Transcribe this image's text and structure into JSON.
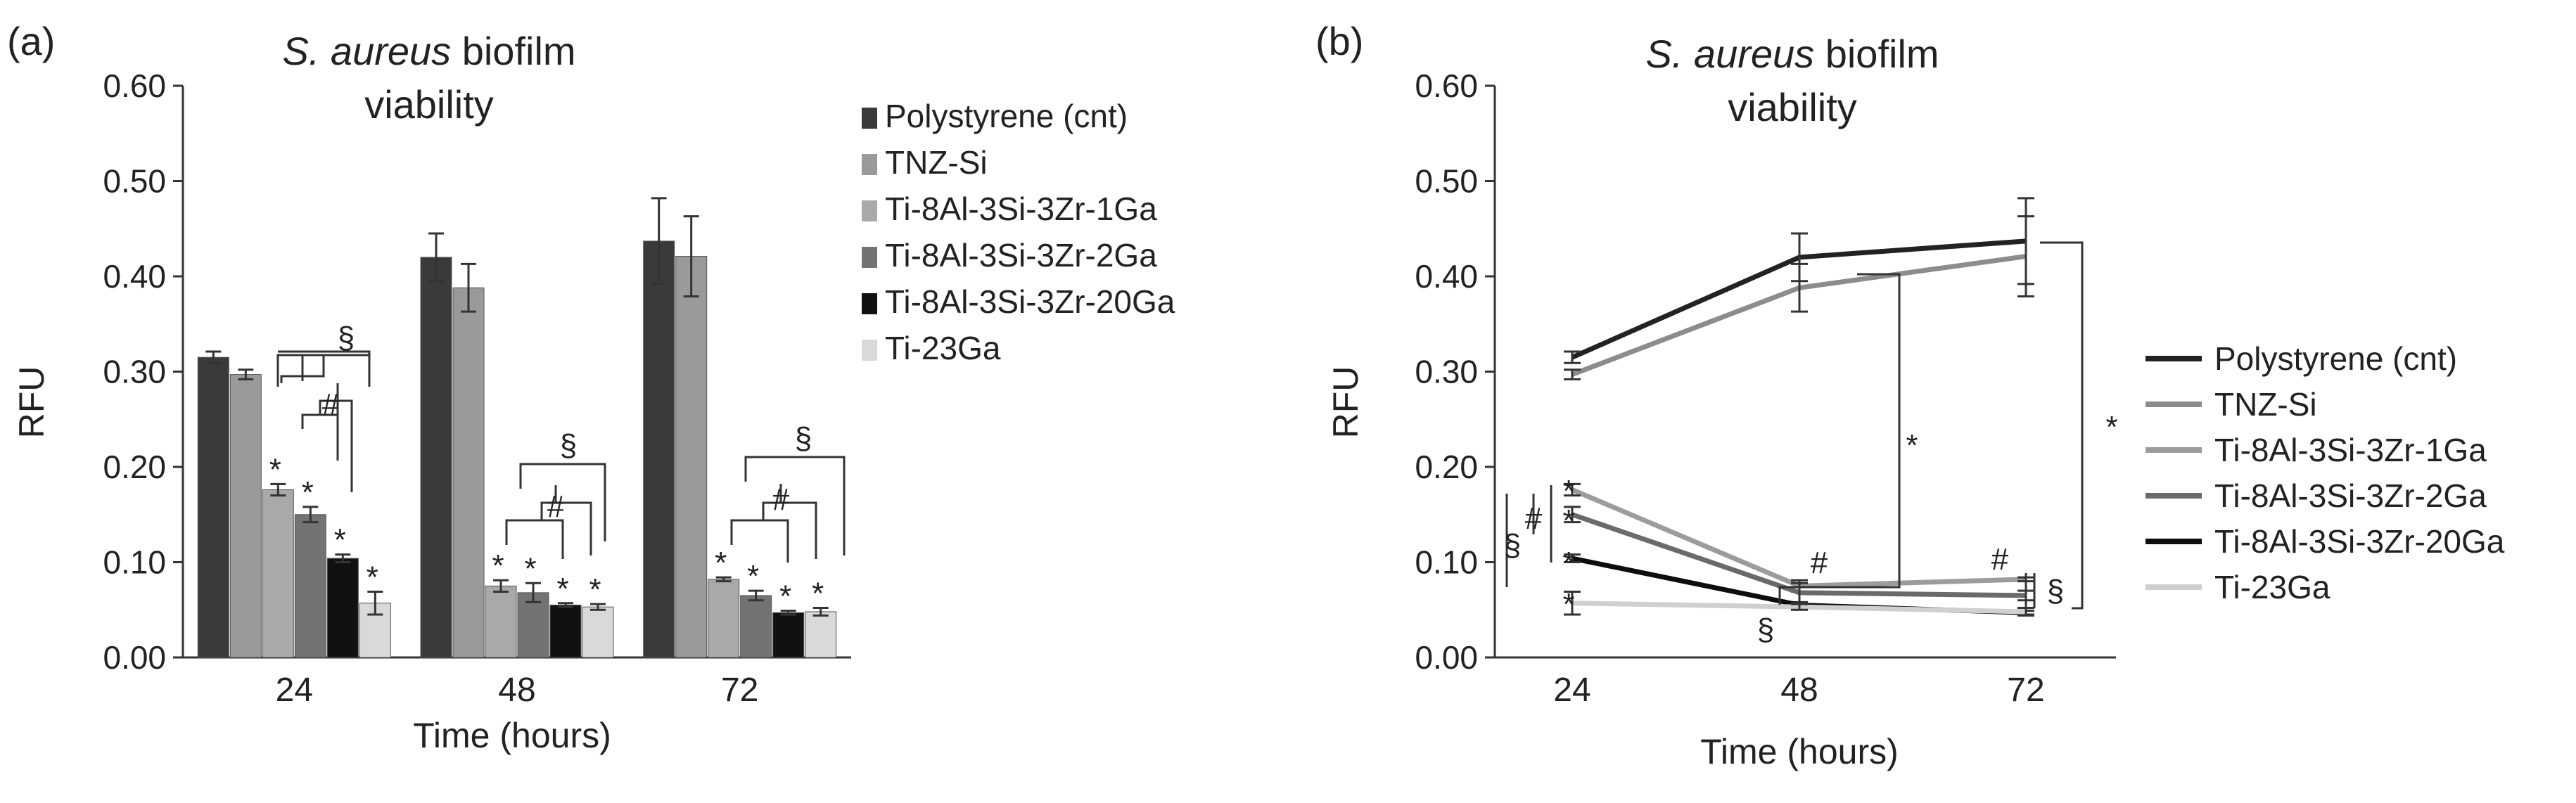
{
  "chart_data": [
    {
      "panel": "(a)",
      "type": "bar",
      "title_italic": "S. aureus",
      "title_rest": " biofilm",
      "title_line2": "viability",
      "xlabel": "Time (hours)",
      "ylabel": "RFU",
      "ylim": [
        0,
        0.6
      ],
      "yticks": [
        "0.00",
        "0.10",
        "0.20",
        "0.30",
        "0.40",
        "0.50",
        "0.60"
      ],
      "categories": [
        "24",
        "48",
        "72"
      ],
      "legend_position": "right",
      "series": [
        {
          "name": "Polystyrene (cnt)",
          "color": "#3a3a3a",
          "values": [
            0.315,
            0.42,
            0.437
          ],
          "errors": [
            0.006,
            0.025,
            0.045
          ],
          "sig": [
            "",
            "",
            ""
          ]
        },
        {
          "name": "TNZ-Si",
          "color": "#9a9a9a",
          "values": [
            0.297,
            0.388,
            0.421
          ],
          "errors": [
            0.005,
            0.025,
            0.042
          ],
          "sig": [
            "",
            "",
            ""
          ]
        },
        {
          "name": "Ti-8Al-3Si-3Zr-1Ga",
          "color": "#a9a9a9",
          "values": [
            0.176,
            0.075,
            0.082
          ],
          "errors": [
            0.006,
            0.006,
            0.002
          ],
          "sig": [
            "*",
            "*",
            "*"
          ]
        },
        {
          "name": "Ti-8Al-3Si-3Zr-2Ga",
          "color": "#737373",
          "values": [
            0.15,
            0.068,
            0.065
          ],
          "errors": [
            0.008,
            0.01,
            0.005
          ],
          "sig": [
            "*",
            "*",
            "*"
          ]
        },
        {
          "name": "Ti-8Al-3Si-3Zr-20Ga",
          "color": "#111111",
          "values": [
            0.104,
            0.055,
            0.047
          ],
          "errors": [
            0.004,
            0.002,
            0.002
          ],
          "sig": [
            "*",
            "*",
            "*"
          ]
        },
        {
          "name": "Ti-23Ga",
          "color": "#d9d9d9",
          "values": [
            0.057,
            0.053,
            0.048
          ],
          "errors": [
            0.012,
            0.003,
            0.004
          ],
          "sig": [
            "*",
            "*",
            "*"
          ]
        }
      ],
      "annotations": [
        "§",
        "#",
        "§",
        "#",
        "§",
        "#"
      ]
    },
    {
      "panel": "(b)",
      "type": "line",
      "title_italic": "S. aureus",
      "title_rest": " biofilm",
      "title_line2": "viability",
      "xlabel": "Time (hours)",
      "ylabel": "RFU",
      "ylim": [
        0,
        0.6
      ],
      "yticks": [
        "0.00",
        "0.10",
        "0.20",
        "0.30",
        "0.40",
        "0.50",
        "0.60"
      ],
      "x": [
        "24",
        "48",
        "72"
      ],
      "legend_position": "right",
      "series": [
        {
          "name": "Polystyrene (cnt)",
          "color": "#222222",
          "values": [
            0.315,
            0.42,
            0.437
          ],
          "errors": [
            0.006,
            0.025,
            0.045
          ]
        },
        {
          "name": "TNZ-Si",
          "color": "#8c8c8c",
          "values": [
            0.297,
            0.388,
            0.421
          ],
          "errors": [
            0.005,
            0.025,
            0.042
          ]
        },
        {
          "name": "Ti-8Al-3Si-3Zr-1Ga",
          "color": "#9c9c9c",
          "values": [
            0.176,
            0.075,
            0.082
          ],
          "errors": [
            0.006,
            0.006,
            0.002
          ]
        },
        {
          "name": "Ti-8Al-3Si-3Zr-2Ga",
          "color": "#6a6a6a",
          "values": [
            0.15,
            0.068,
            0.065
          ],
          "errors": [
            0.008,
            0.01,
            0.005
          ]
        },
        {
          "name": "Ti-8Al-3Si-3Zr-20Ga",
          "color": "#0d0d0d",
          "values": [
            0.104,
            0.055,
            0.047
          ],
          "errors": [
            0.004,
            0.002,
            0.002
          ]
        },
        {
          "name": "Ti-23Ga",
          "color": "#cfcfcf",
          "values": [
            0.057,
            0.053,
            0.048
          ],
          "errors": [
            0.012,
            0.003,
            0.004
          ]
        }
      ],
      "annotations": [
        "*",
        "*",
        "*",
        "*",
        "*",
        "§",
        "#",
        "#",
        "§",
        "#",
        "§",
        "*",
        "*"
      ]
    }
  ]
}
